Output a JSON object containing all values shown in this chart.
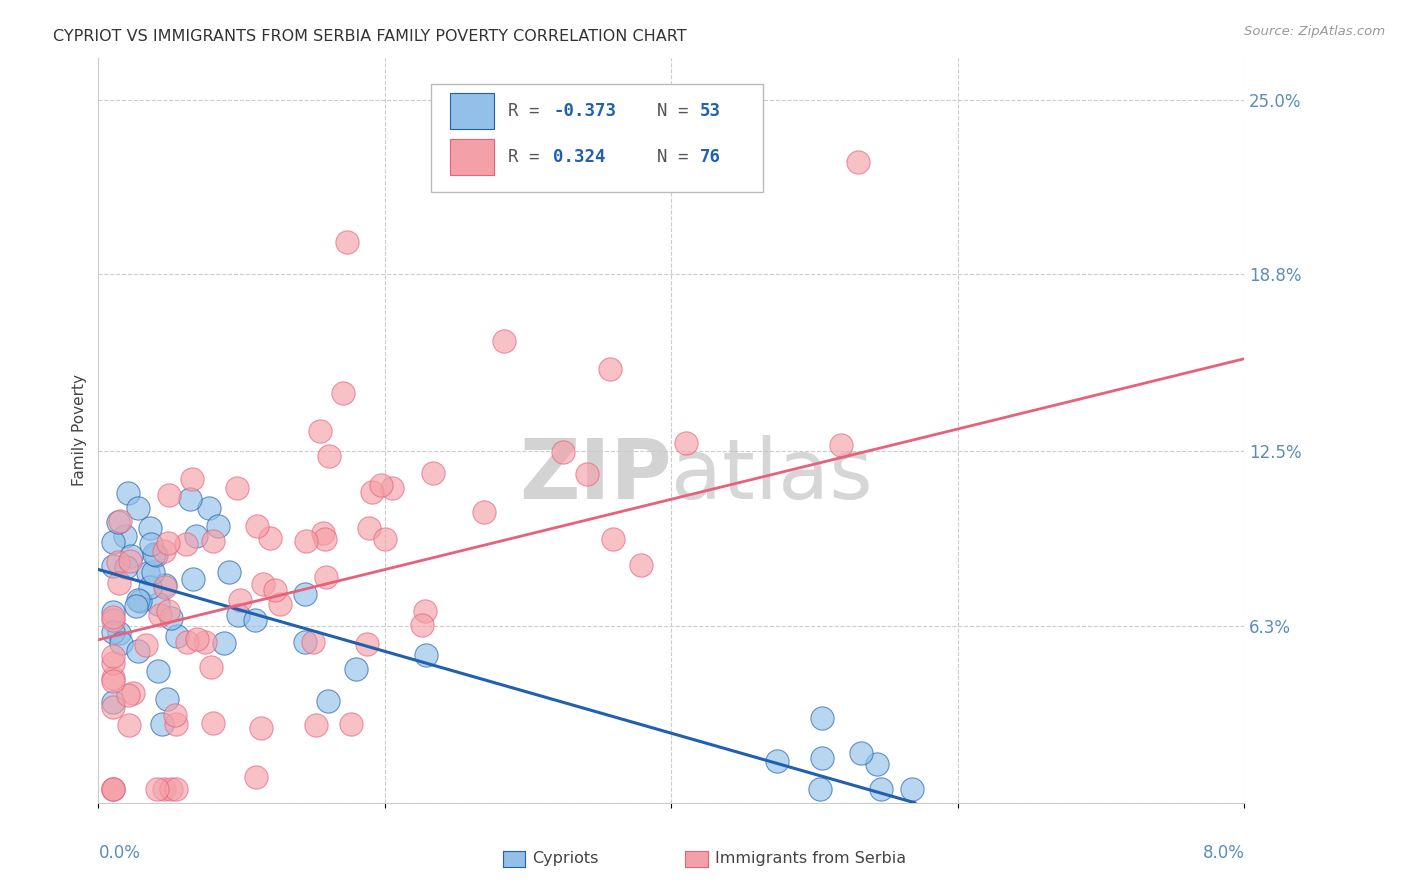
{
  "title": "CYPRIOT VS IMMIGRANTS FROM SERBIA FAMILY POVERTY CORRELATION CHART",
  "source": "Source: ZipAtlas.com",
  "ylabel": "Family Poverty",
  "y_ticks": [
    0.0,
    0.063,
    0.125,
    0.188,
    0.25
  ],
  "y_tick_labels": [
    "",
    "6.3%",
    "12.5%",
    "18.8%",
    "25.0%"
  ],
  "x_range": [
    0.0,
    0.08
  ],
  "y_range": [
    0.0,
    0.265
  ],
  "color_blue": "#92C0E8",
  "color_pink": "#F4A0A8",
  "line_color_blue": "#2060B0",
  "line_color_pink": "#E8607A",
  "blue_line_x": [
    0.0,
    0.057
  ],
  "blue_line_y": [
    0.083,
    0.0
  ],
  "pink_line_x": [
    0.0,
    0.08
  ],
  "pink_line_y": [
    0.058,
    0.158
  ]
}
